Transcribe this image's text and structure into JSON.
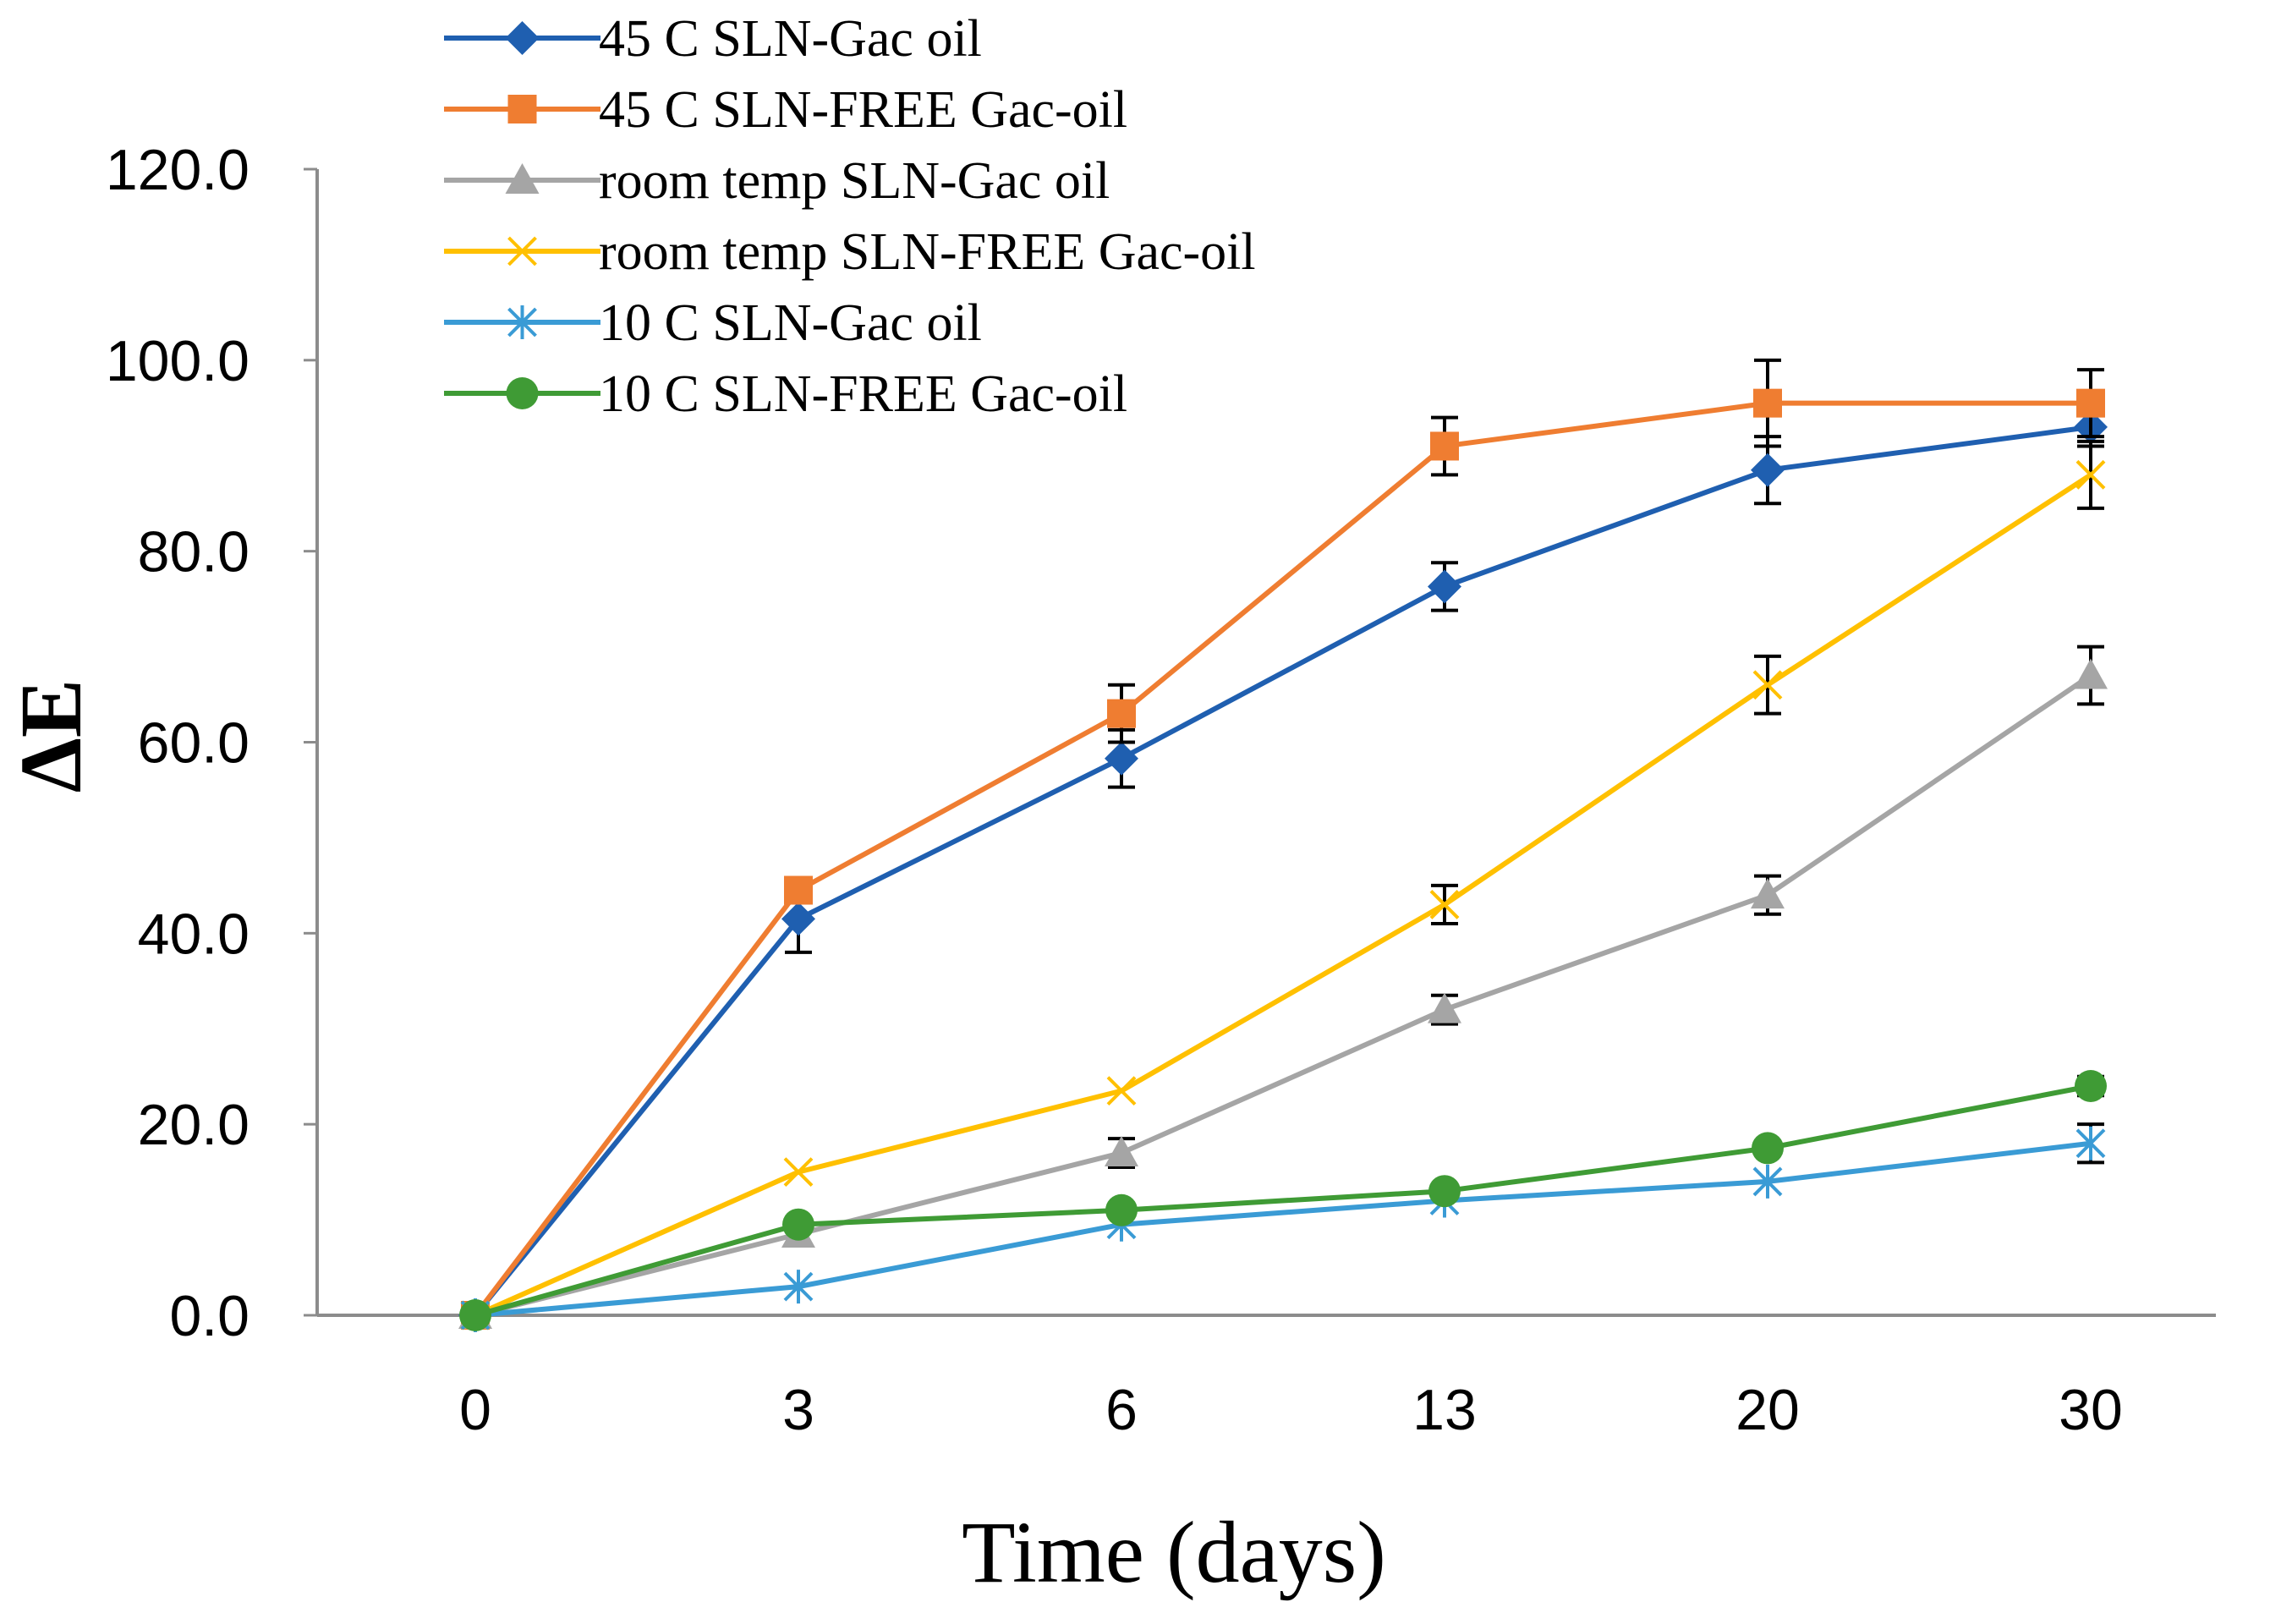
{
  "chart_data": {
    "type": "line",
    "title": "",
    "xlabel": "Time (days)",
    "ylabel": "ΔE",
    "categories": [
      "0",
      "3",
      "6",
      "13",
      "20",
      "30"
    ],
    "ylim": [
      0,
      120
    ],
    "yticks": [
      "0.0",
      "20.0",
      "40.0",
      "60.0",
      "80.0",
      "100.0",
      "120.0"
    ],
    "ytick_values": [
      0,
      20,
      40,
      60,
      80,
      100,
      120
    ],
    "grid": false,
    "legend_position": "top-left",
    "series": [
      {
        "name": "45 C SLN-Gac oil",
        "color": "#1f5fb0",
        "marker": "diamond",
        "values": [
          0,
          41.5,
          58.3,
          76.3,
          88.5,
          93.0
        ],
        "errors": [
          0,
          3.5,
          3.0,
          2.5,
          3.5,
          2.0
        ]
      },
      {
        "name": "45 C SLN-FREE Gac-oil",
        "color": "#ef7d31",
        "marker": "square",
        "values": [
          0,
          44.5,
          63.0,
          91.0,
          95.5,
          95.5
        ],
        "errors": [
          0,
          0,
          3.0,
          3.0,
          4.5,
          3.5
        ]
      },
      {
        "name": "room temp SLN-Gac oil",
        "color": "#a5a5a5",
        "marker": "triangle",
        "values": [
          0,
          8.5,
          17.0,
          32.0,
          44.0,
          67.0
        ],
        "errors": [
          0,
          0,
          1.5,
          1.5,
          2.0,
          3.0
        ]
      },
      {
        "name": "room temp SLN-FREE Gac-oil",
        "color": "#ffc000",
        "marker": "x",
        "values": [
          0,
          15.0,
          23.5,
          43.0,
          66.0,
          88.0
        ],
        "errors": [
          0,
          0,
          0,
          2.0,
          3.0,
          3.5
        ]
      },
      {
        "name": "10 C SLN-Gac oil",
        "color": "#3a9bd5",
        "marker": "star",
        "values": [
          0,
          3.0,
          9.5,
          12.0,
          14.0,
          18.0
        ],
        "errors": [
          0,
          0,
          0,
          0,
          0,
          2.0
        ]
      },
      {
        "name": "10 C SLN-FREE Gac-oil",
        "color": "#3f9b35",
        "marker": "circle",
        "values": [
          0,
          9.5,
          11.0,
          13.0,
          17.5,
          24.0
        ],
        "errors": [
          0,
          0,
          0,
          0,
          0,
          1.0
        ]
      }
    ]
  }
}
